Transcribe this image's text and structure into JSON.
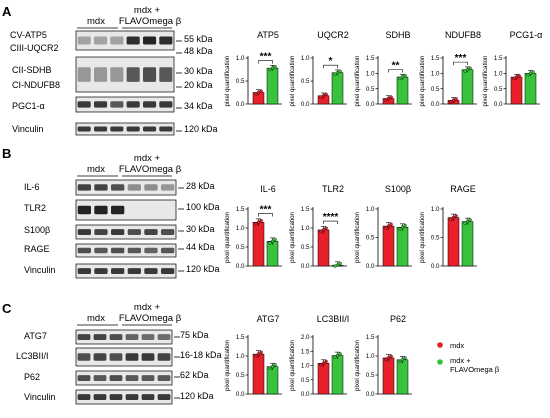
{
  "panels": {
    "A": {
      "letter": "A",
      "group_mdx": "mdx",
      "group_treat_line1": "mdx +",
      "group_treat_line2": "FLAVOmega β",
      "blots": [
        {
          "name": "CV-ATP5",
          "size": "55 kDa"
        },
        {
          "name": "CIII-UQCR2",
          "size": "48 kDa"
        },
        {
          "name": "CII-SDHB",
          "size": "30 kDa"
        },
        {
          "name": "CI-NDUFB8",
          "size": "20 kDa"
        },
        {
          "name": "PGC1-α",
          "size": "34 kDa"
        },
        {
          "name": "Vinculin",
          "size": "120 kDa"
        }
      ]
    },
    "B": {
      "letter": "B",
      "group_mdx": "mdx",
      "group_treat_line1": "mdx +",
      "group_treat_line2": "FLAVOmega β",
      "blots": [
        {
          "name": "IL-6",
          "size": "28 kDa"
        },
        {
          "name": "TLR2",
          "size": "100 kDa"
        },
        {
          "name": "S100β",
          "size": "30 kDa"
        },
        {
          "name": "RAGE",
          "size": "44 kDa"
        },
        {
          "name": "Vinculin",
          "size": "120 kDa"
        }
      ]
    },
    "C": {
      "letter": "C",
      "group_mdx": "mdx",
      "group_treat_line1": "mdx +",
      "group_treat_line2": "FLAVOmega β",
      "blots": [
        {
          "name": "ATG7",
          "size": "75 kDa"
        },
        {
          "name": "LC3BII/I",
          "size": "16-18 kDa"
        },
        {
          "name": "P62",
          "size": "62 kDa"
        },
        {
          "name": "Vinculin",
          "size": "120 kDa"
        }
      ]
    }
  },
  "legend": {
    "mdx": "mdx",
    "treated_line1": "mdx +",
    "treated_line2": "FLAVOmega β"
  },
  "colors": {
    "mdx": "#e8202a",
    "treated": "#39c33c"
  },
  "chart_data": [
    {
      "panel": "A",
      "type": "bar",
      "title": "ATP5",
      "ylabel": "pixel quantification",
      "categories": [
        "mdx",
        "mdx + FLAVOmega β"
      ],
      "values": [
        0.25,
        0.78
      ],
      "ylim": [
        0,
        1.0
      ],
      "yticks": [
        0.0,
        0.5,
        1.0
      ],
      "significance": "***"
    },
    {
      "panel": "A",
      "type": "bar",
      "title": "UQCR2",
      "ylabel": "pixel quantification",
      "categories": [
        "mdx",
        "mdx + FLAVOmega β"
      ],
      "values": [
        0.18,
        0.68
      ],
      "ylim": [
        0,
        1.0
      ],
      "yticks": [
        0.0,
        0.5,
        1.0
      ],
      "significance": "*"
    },
    {
      "panel": "A",
      "type": "bar",
      "title": "SDHB",
      "ylabel": "pixel quantification",
      "categories": [
        "mdx",
        "mdx + FLAVOmega β"
      ],
      "values": [
        0.18,
        0.88
      ],
      "ylim": [
        0,
        1.5
      ],
      "yticks": [
        0.0,
        0.5,
        1.0,
        1.5
      ],
      "significance": "**"
    },
    {
      "panel": "A",
      "type": "bar",
      "title": "NDUFB8",
      "ylabel": "pixel quantification",
      "categories": [
        "mdx",
        "mdx + FLAVOmega β"
      ],
      "values": [
        0.12,
        1.12
      ],
      "ylim": [
        0,
        1.5
      ],
      "yticks": [
        0.0,
        0.5,
        1.0,
        1.5
      ],
      "significance": "***"
    },
    {
      "panel": "A",
      "type": "bar",
      "title": "PCG1-α",
      "ylabel": "pixel quantification",
      "categories": [
        "mdx",
        "mdx + FLAVOmega β"
      ],
      "values": [
        0.88,
        1.0
      ],
      "ylim": [
        0,
        1.5
      ],
      "yticks": [
        0.0,
        0.5,
        1.0,
        1.5
      ],
      "significance": ""
    },
    {
      "panel": "B",
      "type": "bar",
      "title": "IL-6",
      "ylabel": "pixel quantification",
      "categories": [
        "mdx",
        "mdx + FLAVOmega β"
      ],
      "values": [
        1.15,
        0.65
      ],
      "ylim": [
        0,
        1.5
      ],
      "yticks": [
        0.0,
        0.5,
        1.0,
        1.5
      ],
      "significance": "***"
    },
    {
      "panel": "B",
      "type": "bar",
      "title": "TLR2",
      "ylabel": "pixel quantification",
      "categories": [
        "mdx",
        "mdx + FLAVOmega β"
      ],
      "values": [
        0.95,
        0.02
      ],
      "ylim": [
        0,
        1.5
      ],
      "yticks": [
        0.0,
        0.5,
        1.0,
        1.5
      ],
      "significance": "****"
    },
    {
      "panel": "B",
      "type": "bar",
      "title": "S100β",
      "ylabel": "pixel quantification",
      "categories": [
        "mdx",
        "mdx + FLAVOmega β"
      ],
      "values": [
        0.7,
        0.68
      ],
      "ylim": [
        0,
        1.0
      ],
      "yticks": [
        0.0,
        0.5,
        1.0
      ],
      "significance": ""
    },
    {
      "panel": "B",
      "type": "bar",
      "title": "RAGE",
      "ylabel": "pixel quantification",
      "categories": [
        "mdx",
        "mdx + FLAVOmega β"
      ],
      "values": [
        0.85,
        0.78
      ],
      "ylim": [
        0,
        1.0
      ],
      "yticks": [
        0.0,
        0.5,
        1.0
      ],
      "significance": ""
    },
    {
      "panel": "C",
      "type": "bar",
      "title": "ATG7",
      "ylabel": "pixel quantification",
      "categories": [
        "mdx",
        "mdx + FLAVOmega β"
      ],
      "values": [
        1.05,
        0.72
      ],
      "ylim": [
        0,
        1.5
      ],
      "yticks": [
        0.0,
        0.5,
        1.0,
        1.5
      ],
      "significance": ""
    },
    {
      "panel": "C",
      "type": "bar",
      "title": "LC3BII/I",
      "ylabel": "pixel quantification",
      "categories": [
        "mdx",
        "mdx + FLAVOmega β"
      ],
      "values": [
        1.08,
        1.35
      ],
      "ylim": [
        0,
        2.0
      ],
      "yticks": [
        0.0,
        0.5,
        1.0,
        1.5,
        2.0
      ],
      "significance": ""
    },
    {
      "panel": "C",
      "type": "bar",
      "title": "P62",
      "ylabel": "pixel quantification",
      "categories": [
        "mdx",
        "mdx + FLAVOmega β"
      ],
      "values": [
        0.95,
        0.9
      ],
      "ylim": [
        0,
        1.5
      ],
      "yticks": [
        0.0,
        0.5,
        1.0,
        1.5
      ],
      "significance": ""
    }
  ]
}
